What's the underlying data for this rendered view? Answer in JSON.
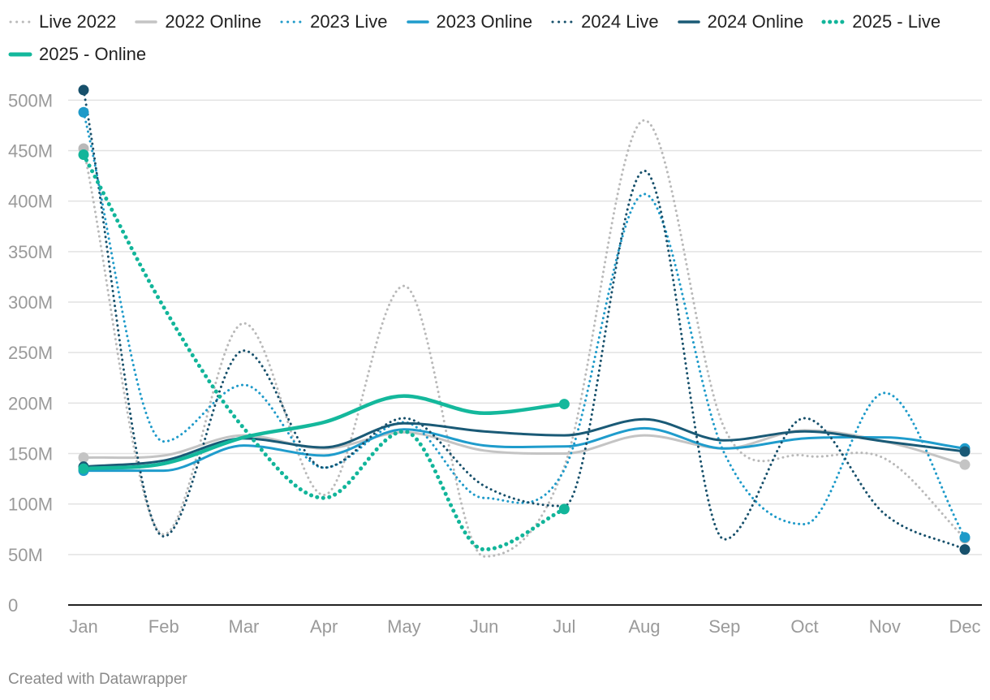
{
  "footer": "Created with Datawrapper",
  "chart_data": {
    "type": "line",
    "title": "",
    "xlabel": "",
    "ylabel": "",
    "categories": [
      "Jan",
      "Feb",
      "Mar",
      "Apr",
      "May",
      "Jun",
      "Jul",
      "Aug",
      "Sep",
      "Oct",
      "Nov",
      "Dec"
    ],
    "y_ticks": [
      0,
      50,
      100,
      150,
      200,
      250,
      300,
      350,
      400,
      450,
      500
    ],
    "y_tick_labels": [
      "0",
      "50M",
      "100M",
      "150M",
      "200M",
      "250M",
      "300M",
      "350M",
      "400M",
      "450M",
      "500M"
    ],
    "y_unit": "M",
    "ylim": [
      0,
      520
    ],
    "grid": true,
    "legend_position": "top",
    "series": [
      {
        "name": "Live 2022",
        "style": "dotted",
        "color": "#b9b9b9",
        "values": [
          452,
          70,
          279,
          109,
          316,
          48,
          137,
          480,
          175,
          148,
          145,
          66
        ]
      },
      {
        "name": "2022 Online",
        "style": "solid",
        "color": "#c4c4c4",
        "values": [
          146,
          148,
          168,
          155,
          171,
          153,
          150,
          168,
          155,
          173,
          162,
          139
        ]
      },
      {
        "name": "2023 Live",
        "style": "dotted",
        "color": "#1e9ac9",
        "values": [
          488,
          162,
          218,
          136,
          181,
          106,
          134,
          407,
          150,
          80,
          210,
          67
        ]
      },
      {
        "name": "2023 Online",
        "style": "solid",
        "color": "#1f9ccc",
        "values": [
          133,
          133,
          158,
          148,
          174,
          158,
          157,
          175,
          155,
          165,
          166,
          155
        ]
      },
      {
        "name": "2024 Live",
        "style": "dotted",
        "color": "#17506b",
        "values": [
          510,
          68,
          252,
          136,
          185,
          118,
          98,
          430,
          65,
          185,
          90,
          55
        ]
      },
      {
        "name": "2024 Online",
        "style": "solid",
        "color": "#1a5a76",
        "values": [
          137,
          143,
          165,
          156,
          180,
          172,
          168,
          184,
          163,
          172,
          162,
          152
        ]
      },
      {
        "name": "2025 - Live",
        "style": "dotted",
        "color": "#12b59a",
        "values": [
          446,
          295,
          175,
          106,
          172,
          55,
          95,
          null,
          null,
          null,
          null,
          null
        ]
      },
      {
        "name": "2025 - Online",
        "style": "solid",
        "color": "#14b89c",
        "values": [
          135,
          140,
          166,
          181,
          207,
          190,
          199,
          null,
          null,
          null,
          null,
          null
        ]
      }
    ]
  }
}
